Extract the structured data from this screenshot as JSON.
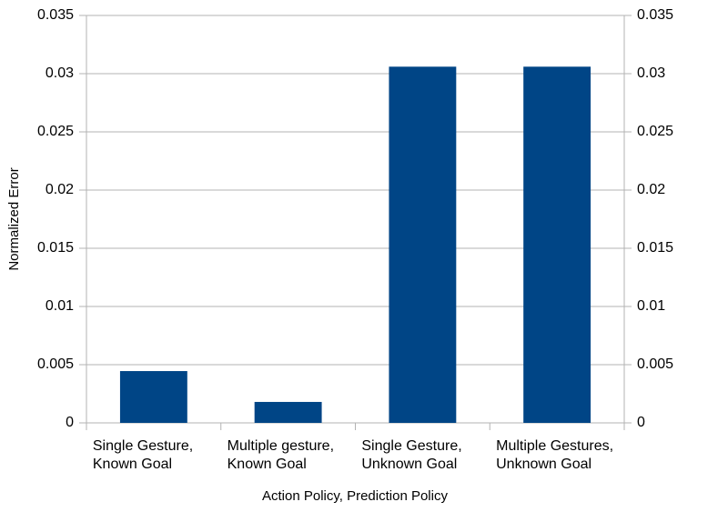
{
  "chart_data": {
    "type": "bar",
    "x_label": "Action Policy, Prediction Policy",
    "y_label": "Normalized Error",
    "categories": [
      [
        "Single Gesture,",
        "Known Goal"
      ],
      [
        "Multiple gesture,",
        "Known Goal"
      ],
      [
        "Single Gesture,",
        "Unknown Goal"
      ],
      [
        "Multiple Gestures,",
        "Unknown Goal"
      ]
    ],
    "values": [
      0.00445,
      0.0018,
      0.0306,
      0.0306
    ],
    "color": "#004586",
    "ylim": [
      0,
      0.035
    ],
    "yticks": [
      0,
      0.005,
      0.01,
      0.015,
      0.02,
      0.025,
      0.03,
      0.035
    ],
    "y2lim": [
      0,
      0.035
    ],
    "y2ticks": [
      0,
      0.005,
      0.01,
      0.015,
      0.02,
      0.025,
      0.03,
      0.035
    ],
    "grid": true
  }
}
